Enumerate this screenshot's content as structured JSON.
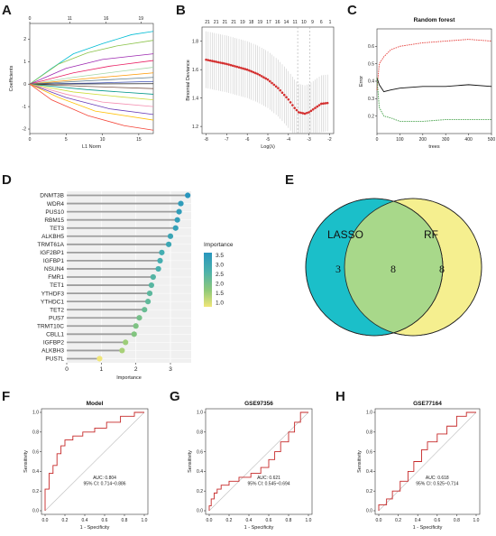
{
  "panel_labels": {
    "A": "A",
    "B": "B",
    "C": "C",
    "D": "D",
    "E": "E",
    "F": "F",
    "G": "G",
    "H": "H"
  },
  "chart_data": [
    {
      "panel": "A",
      "type": "line",
      "xlabel": "L1 Norm",
      "ylabel": "Coefficients",
      "xlim": [
        0,
        17
      ],
      "ylim": [
        -2.2,
        2.7
      ],
      "x_ticks": [
        "0",
        "5",
        "10",
        "15"
      ],
      "y_ticks": [
        "-2",
        "-1",
        "0",
        "1",
        "2"
      ],
      "top_ticks": [
        "0",
        "11",
        "16",
        "19"
      ],
      "top_tick_positions": [
        0,
        5.5,
        10.5,
        15.3
      ],
      "series": [
        {
          "color": "#00bcd4",
          "points": [
            [
              0,
              0
            ],
            [
              3,
              0.7
            ],
            [
              6,
              1.35
            ],
            [
              10,
              1.8
            ],
            [
              14,
              2.2
            ],
            [
              17,
              2.35
            ]
          ]
        },
        {
          "color": "#8bc34a",
          "points": [
            [
              0,
              0
            ],
            [
              4,
              0.9
            ],
            [
              8,
              1.4
            ],
            [
              12,
              1.7
            ],
            [
              17,
              1.95
            ]
          ]
        },
        {
          "color": "#9c27b0",
          "points": [
            [
              0,
              0
            ],
            [
              5,
              0.7
            ],
            [
              10,
              1.1
            ],
            [
              17,
              1.35
            ]
          ]
        },
        {
          "color": "#e91e63",
          "points": [
            [
              0,
              0
            ],
            [
              6,
              0.5
            ],
            [
              11,
              0.8
            ],
            [
              17,
              1.05
            ]
          ]
        },
        {
          "color": "#a5d6a7",
          "points": [
            [
              0,
              0
            ],
            [
              6,
              0.3
            ],
            [
              12,
              0.55
            ],
            [
              17,
              0.75
            ]
          ]
        },
        {
          "color": "#ff9800",
          "points": [
            [
              0,
              0
            ],
            [
              8,
              0.25
            ],
            [
              17,
              0.5
            ]
          ]
        },
        {
          "color": "#607d8b",
          "points": [
            [
              0,
              0
            ],
            [
              8,
              0.15
            ],
            [
              17,
              0.3
            ]
          ]
        },
        {
          "color": "#3f51b5",
          "points": [
            [
              0,
              0
            ],
            [
              9,
              0.05
            ],
            [
              17,
              0.12
            ]
          ]
        },
        {
          "color": "#212121",
          "points": [
            [
              0,
              0
            ],
            [
              17,
              0.02
            ]
          ]
        },
        {
          "color": "#795548",
          "points": [
            [
              0,
              0
            ],
            [
              8,
              -0.1
            ],
            [
              17,
              -0.2
            ]
          ]
        },
        {
          "color": "#009688",
          "points": [
            [
              0,
              0
            ],
            [
              8,
              -0.25
            ],
            [
              17,
              -0.45
            ]
          ]
        },
        {
          "color": "#cddc39",
          "points": [
            [
              0,
              0
            ],
            [
              6,
              -0.35
            ],
            [
              12,
              -0.55
            ],
            [
              17,
              -0.7
            ]
          ]
        },
        {
          "color": "#f48fb1",
          "points": [
            [
              0,
              0
            ],
            [
              5,
              -0.45
            ],
            [
              10,
              -0.8
            ],
            [
              17,
              -1.0
            ]
          ]
        },
        {
          "color": "#673ab7",
          "points": [
            [
              0,
              0
            ],
            [
              5,
              -0.6
            ],
            [
              11,
              -1.1
            ],
            [
              17,
              -1.35
            ]
          ]
        },
        {
          "color": "#ffc107",
          "points": [
            [
              0,
              0
            ],
            [
              4,
              -0.6
            ],
            [
              9,
              -1.2
            ],
            [
              17,
              -1.6
            ]
          ]
        },
        {
          "color": "#f44336",
          "points": [
            [
              0,
              0
            ],
            [
              3,
              -0.7
            ],
            [
              8,
              -1.4
            ],
            [
              13,
              -1.85
            ],
            [
              17,
              -2.05
            ]
          ]
        }
      ]
    },
    {
      "panel": "B",
      "type": "scatter",
      "xlabel": "Log(λ)",
      "ylabel": "Binomial Deviance",
      "xlim": [
        -8.2,
        -1.8
      ],
      "ylim": [
        1.15,
        1.9
      ],
      "x_ticks": [
        "-8",
        "-7",
        "-6",
        "-5",
        "-4",
        "-3",
        "-2"
      ],
      "y_ticks": [
        "1.2",
        "1.4",
        "1.6",
        "1.8"
      ],
      "top_ticks": [
        "21",
        "21",
        "21",
        "21",
        "19",
        "18",
        "19",
        "17",
        "16",
        "14",
        "11",
        "10",
        "9",
        "6",
        "1"
      ],
      "vlines": [
        -3.55,
        -2.95
      ],
      "curve": [
        [
          -8,
          1.67
        ],
        [
          -7.5,
          1.655
        ],
        [
          -7,
          1.64
        ],
        [
          -6.5,
          1.62
        ],
        [
          -6,
          1.6
        ],
        [
          -5.5,
          1.57
        ],
        [
          -5,
          1.53
        ],
        [
          -4.5,
          1.47
        ],
        [
          -4,
          1.39
        ],
        [
          -3.7,
          1.33
        ],
        [
          -3.5,
          1.3
        ],
        [
          -3.2,
          1.29
        ],
        [
          -3,
          1.3
        ],
        [
          -2.7,
          1.33
        ],
        [
          -2.4,
          1.36
        ],
        [
          -2.1,
          1.365
        ],
        [
          -2.0,
          1.36
        ]
      ],
      "errbar_width": 0.2
    },
    {
      "panel": "C",
      "type": "line",
      "title": "Random forest",
      "xlabel": "trees",
      "ylabel": "Error",
      "xlim": [
        0,
        500
      ],
      "ylim": [
        0.1,
        0.7
      ],
      "x_ticks": [
        "0",
        "100",
        "200",
        "300",
        "400",
        "500"
      ],
      "y_ticks": [
        "0.2",
        "0.3",
        "0.4",
        "0.5",
        "0.6"
      ],
      "series": [
        {
          "color": "#e53935",
          "dashed": true,
          "points": [
            [
              0,
              0.35
            ],
            [
              10,
              0.5
            ],
            [
              30,
              0.54
            ],
            [
              60,
              0.58
            ],
            [
              100,
              0.6
            ],
            [
              200,
              0.62
            ],
            [
              300,
              0.63
            ],
            [
              400,
              0.64
            ],
            [
              500,
              0.63
            ]
          ]
        },
        {
          "color": "#111111",
          "dashed": false,
          "points": [
            [
              0,
              0.42
            ],
            [
              10,
              0.38
            ],
            [
              30,
              0.34
            ],
            [
              60,
              0.35
            ],
            [
              100,
              0.36
            ],
            [
              200,
              0.37
            ],
            [
              300,
              0.37
            ],
            [
              400,
              0.38
            ],
            [
              500,
              0.37
            ]
          ]
        },
        {
          "color": "#43a047",
          "dashed": true,
          "points": [
            [
              0,
              0.42
            ],
            [
              10,
              0.25
            ],
            [
              30,
              0.2
            ],
            [
              60,
              0.19
            ],
            [
              100,
              0.17
            ],
            [
              200,
              0.17
            ],
            [
              300,
              0.18
            ],
            [
              400,
              0.18
            ],
            [
              500,
              0.18
            ]
          ]
        }
      ]
    },
    {
      "panel": "D",
      "type": "bar",
      "xlabel": "Importance",
      "legend_title": "Importance",
      "legend_ticks": [
        "3.5",
        "3.0",
        "2.5",
        "2.0",
        "1.5",
        "1.0"
      ],
      "xlim": [
        0,
        3.6
      ],
      "x_ticks": [
        "0",
        "1",
        "2",
        "3"
      ],
      "categories": [
        "DNMT3B",
        "WDR4",
        "PUS10",
        "RBM15",
        "TET3",
        "ALKBH5",
        "TRMT61A",
        "IGF2BP1",
        "IGFBP1",
        "NSUN4",
        "FMR1",
        "TET1",
        "YTHDF3",
        "YTHDC1",
        "TET2",
        "PUS7",
        "TRMT10C",
        "CBLL1",
        "IGFBP2",
        "ALKBH3",
        "PUS7L"
      ],
      "values": [
        3.5,
        3.3,
        3.25,
        3.2,
        3.15,
        3.0,
        2.95,
        2.75,
        2.7,
        2.65,
        2.5,
        2.45,
        2.4,
        2.35,
        2.25,
        2.1,
        2.0,
        1.95,
        1.7,
        1.6,
        0.95
      ]
    },
    {
      "panel": "E",
      "type": "other",
      "sets": [
        "LASSO",
        "RF"
      ],
      "counts": {
        "lasso_only": "3",
        "both": "8",
        "rf_only": "8"
      },
      "colors": {
        "lasso": "#1bbfc9",
        "rf": "#f5ef8f",
        "overlap": "#a8d88a"
      }
    },
    {
      "panel": "F",
      "type": "line",
      "title": "Model",
      "xlabel": "1 - Specificity",
      "ylabel": "Sensitivity",
      "auc_text": "AUC: 0.804",
      "ci_text": "95% CI: 0.714~0.886",
      "x_ticks": [
        "0.0",
        "0.2",
        "0.4",
        "0.6",
        "0.8",
        "1.0"
      ],
      "y_ticks": [
        "0.0",
        "0.2",
        "0.4",
        "0.6",
        "0.8",
        "1.0"
      ],
      "roc": [
        [
          0,
          0
        ],
        [
          0,
          0.22
        ],
        [
          0.04,
          0.22
        ],
        [
          0.04,
          0.38
        ],
        [
          0.08,
          0.38
        ],
        [
          0.08,
          0.46
        ],
        [
          0.12,
          0.46
        ],
        [
          0.12,
          0.58
        ],
        [
          0.16,
          0.58
        ],
        [
          0.16,
          0.66
        ],
        [
          0.2,
          0.66
        ],
        [
          0.2,
          0.72
        ],
        [
          0.28,
          0.72
        ],
        [
          0.28,
          0.76
        ],
        [
          0.38,
          0.76
        ],
        [
          0.38,
          0.8
        ],
        [
          0.5,
          0.8
        ],
        [
          0.5,
          0.84
        ],
        [
          0.62,
          0.84
        ],
        [
          0.62,
          0.9
        ],
        [
          0.76,
          0.9
        ],
        [
          0.76,
          0.96
        ],
        [
          0.9,
          0.96
        ],
        [
          0.9,
          1
        ],
        [
          1,
          1
        ]
      ]
    },
    {
      "panel": "G",
      "type": "line",
      "title": "GSE97356",
      "xlabel": "1 - Specificity",
      "ylabel": "Sensitivity",
      "auc_text": "AUC: 0.621",
      "ci_text": "95% CI: 0.545~0.694",
      "x_ticks": [
        "0.0",
        "0.2",
        "0.4",
        "0.6",
        "0.8",
        "1.0"
      ],
      "y_ticks": [
        "0.0",
        "0.2",
        "0.4",
        "0.6",
        "0.8",
        "1.0"
      ],
      "roc": [
        [
          0,
          0
        ],
        [
          0,
          0.05
        ],
        [
          0.02,
          0.05
        ],
        [
          0.02,
          0.12
        ],
        [
          0.05,
          0.12
        ],
        [
          0.05,
          0.18
        ],
        [
          0.08,
          0.18
        ],
        [
          0.08,
          0.22
        ],
        [
          0.12,
          0.22
        ],
        [
          0.12,
          0.26
        ],
        [
          0.2,
          0.26
        ],
        [
          0.2,
          0.3
        ],
        [
          0.3,
          0.3
        ],
        [
          0.3,
          0.34
        ],
        [
          0.42,
          0.34
        ],
        [
          0.42,
          0.38
        ],
        [
          0.52,
          0.38
        ],
        [
          0.52,
          0.44
        ],
        [
          0.6,
          0.44
        ],
        [
          0.6,
          0.52
        ],
        [
          0.66,
          0.52
        ],
        [
          0.66,
          0.6
        ],
        [
          0.72,
          0.6
        ],
        [
          0.72,
          0.7
        ],
        [
          0.8,
          0.7
        ],
        [
          0.8,
          0.8
        ],
        [
          0.86,
          0.8
        ],
        [
          0.86,
          0.9
        ],
        [
          0.92,
          0.9
        ],
        [
          0.92,
          1
        ],
        [
          1,
          1
        ]
      ]
    },
    {
      "panel": "H",
      "type": "line",
      "title": "GSE77164",
      "xlabel": "1 - Specificity",
      "ylabel": "Sensitivity",
      "auc_text": "AUC: 0.618",
      "ci_text": "95% CI: 0.525~0.714",
      "x_ticks": [
        "0.0",
        "0.2",
        "0.4",
        "0.6",
        "0.8",
        "1.0"
      ],
      "y_ticks": [
        "0.0",
        "0.2",
        "0.4",
        "0.6",
        "0.8",
        "1.0"
      ],
      "roc": [
        [
          0,
          0
        ],
        [
          0,
          0.06
        ],
        [
          0.08,
          0.06
        ],
        [
          0.08,
          0.12
        ],
        [
          0.14,
          0.12
        ],
        [
          0.14,
          0.2
        ],
        [
          0.22,
          0.2
        ],
        [
          0.22,
          0.3
        ],
        [
          0.3,
          0.3
        ],
        [
          0.3,
          0.4
        ],
        [
          0.36,
          0.4
        ],
        [
          0.36,
          0.5
        ],
        [
          0.44,
          0.5
        ],
        [
          0.44,
          0.62
        ],
        [
          0.5,
          0.62
        ],
        [
          0.5,
          0.7
        ],
        [
          0.6,
          0.7
        ],
        [
          0.6,
          0.78
        ],
        [
          0.7,
          0.78
        ],
        [
          0.7,
          0.86
        ],
        [
          0.8,
          0.86
        ],
        [
          0.8,
          0.96
        ],
        [
          0.9,
          0.96
        ],
        [
          0.9,
          1
        ],
        [
          1,
          1
        ]
      ]
    }
  ]
}
